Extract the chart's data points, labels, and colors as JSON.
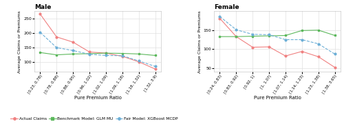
{
  "male": {
    "title": "Male",
    "xtick_labels": [
      "[0.23, 0.78)",
      "[0.78, 0.88)",
      "[0.88, 0.95)",
      "[0.96, 1.02)",
      "[1.02, 1.09)",
      "[1.09, 1.18)",
      "[1.18, 1.32)",
      "[1.32, 3.9)"
    ],
    "actual_claims": [
      265,
      186,
      168,
      134,
      130,
      119,
      100,
      75
    ],
    "glm_mu": [
      132,
      124,
      127,
      128,
      130,
      129,
      127,
      122
    ],
    "xgb_mcdp": [
      202,
      149,
      139,
      126,
      122,
      121,
      103,
      84
    ],
    "ylim": [
      65,
      275
    ],
    "yticks": [
      100,
      150,
      200,
      250
    ]
  },
  "female": {
    "title": "Female",
    "xtick_labels": [
      "[0.24, 0.83)",
      "[0.83, 0.92)",
      "[0.92, 1)",
      "[1, 1.07)",
      "[1.07, 1.14)",
      "[1.14, 1.23)",
      "[1.23, 1.38)",
      "[1.38, 3.65)"
    ],
    "actual_claims": [
      181,
      133,
      105,
      106,
      82,
      94,
      80,
      52
    ],
    "glm_mu": [
      133,
      133,
      134,
      135,
      136,
      149,
      150,
      136
    ],
    "xgb_mcdp": [
      186,
      151,
      139,
      138,
      125,
      125,
      114,
      87
    ],
    "ylim": [
      40,
      200
    ],
    "yticks": [
      50,
      100,
      150
    ]
  },
  "colors": {
    "actual_claims": "#f08080",
    "glm_mu": "#5cb85c",
    "xgb_mcdp": "#6baed6"
  },
  "legend_labels": [
    "Actual Claims",
    "Benchmark Model: GLM MU",
    "Fair Model: XGBoost MCDP"
  ],
  "ylabel": "Average Claims or Premiums",
  "xlabel": "Pure Premium Ratio"
}
